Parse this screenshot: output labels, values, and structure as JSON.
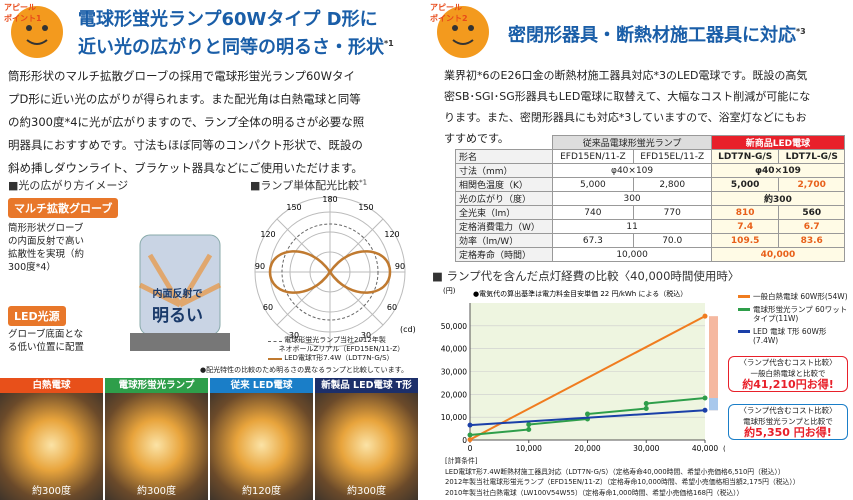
{
  "left": {
    "badge": [
      "アピール",
      "ポイント1"
    ],
    "title": [
      "電球形蛍光ランプ60Wタイプ D形に",
      "近い光の広がりと同等の明るさ・形状"
    ],
    "title_note": "*1",
    "paragraph": [
      "筒形形状のマルチ拡散グローブの採用で電球形蛍光ランプ60Wタイ",
      "プD形に近い光の広がりが得られます。また配光角は白熱電球と同等",
      "の約300度*4に光が広がりますので、ランプ全体の明るさが必要な照",
      "明器具におすすめです。寸法もほぼ同等のコンパクト形状で、既設の",
      "斜め挿しダウンライト、ブラケット器具などにご使用いただけます。"
    ],
    "section1": "■光の広がり方イメージ",
    "section2": "■ランプ単体配光比較",
    "section2_note": "*1",
    "illustration": {
      "label1": "マルチ拡散グローブ",
      "text1": [
        "筒形形状グローブ",
        "の内面反射で高い",
        "拡散性を実現（約",
        "300度*4）"
      ],
      "label2": "LED光源",
      "text2": [
        "グローブ底面とな",
        "る低い位置に配置"
      ],
      "lamp_text": [
        "内面反射で",
        "明るい"
      ]
    },
    "polar": {
      "angles": [
        180,
        150,
        120,
        90,
        60,
        30
      ],
      "unit": "(cd)",
      "legend": [
        "電球形蛍光ランプ当社2012年製",
        "ネオボールZリアル（EFD15EN/11-Z）",
        "LED電球T形7.4W（LDT7N-G/S）"
      ]
    },
    "note": "●配光特性の比較のため明るさの異なるランプと比較しています。",
    "panels": [
      {
        "name": "白熱電球",
        "angle": "約300度"
      },
      {
        "name": "電球形蛍光ランプ",
        "angle": "約300度"
      },
      {
        "name": "従来 LED電球",
        "angle": "約120度"
      },
      {
        "name": "新製品 LED電球 T形",
        "angle": "約300度"
      }
    ]
  },
  "right": {
    "badge": [
      "アピール",
      "ポイント2"
    ],
    "title": "密閉形器具・断熱材施工器具に対応",
    "title_note": "*3",
    "paragraph": [
      "業界初*6のE26口金の断熱材施工器具対応*3のLED電球です。既設の高気",
      "密SB･SGI･SG形器具もLED電球に取替えて、大幅なコスト削減が可能にな",
      "ります。また、密閉形器具にも対応*3していますので、浴室灯などにもお",
      "すすめです。"
    ],
    "table": {
      "group_old": "従来品電球形蛍光ランプ",
      "group_new": "新商品LED電球",
      "rows": [
        [
          "形名",
          "EFD15EN/11-Z",
          "EFD15EL/11-Z",
          "LDT7N-G/S",
          "LDT7L-G/S"
        ],
        [
          "寸法（mm）",
          "φ40×109",
          "φ40×109"
        ],
        [
          "相関色温度（K）",
          "5,000",
          "2,800",
          "5,000",
          "2,700"
        ],
        [
          "光の広がり（度）",
          "300",
          "約300"
        ],
        [
          "全光束（lm）",
          "740",
          "770",
          "810",
          "560"
        ],
        [
          "定格消費電力（W）",
          "11",
          "7.4",
          "6.7"
        ],
        [
          "効率（lm/W）",
          "67.3",
          "70.0",
          "109.5",
          "83.6"
        ],
        [
          "定格寿命（時間）",
          "10,000",
          "40,000"
        ]
      ]
    },
    "chart_title": "■ ランプ代を含んだ点灯経費の比較〈40,000時間使用時〉",
    "callouts": [
      {
        "head": "〈ランプ代含むコスト比較〉",
        "line": "一般白熱電球と比較で",
        "amount": "約41,210円お得!"
      },
      {
        "head": "〈ランプ代含むコスト比較〉",
        "line": "電球形蛍光ランプと比較で",
        "amount": "約5,350 円お得!"
      }
    ],
    "conditions": [
      "[計算条件]",
      "LED電球T形7.4W断熱材施工器具対応（LDT7N-G/S）（定格寿命40,000時間、希望小売価格6,510円（税込））",
      "2012年製当社電球形蛍光ランプ（EFD15EN/11-Z）（定格寿命10,000時間、希望小売価格相当額2,175円（税込））",
      "2010年製当社白熱電球（LW100V54W55）（定格寿命1,000時間、希望小売価格168円（税込））"
    ]
  },
  "chart_data": {
    "type": "line",
    "ylabel": "(円)",
    "xlabel": "(時間)",
    "note": "●電気代の算出基準は電力料金目安単価 22 円/kWh による（税込）",
    "xlim": [
      0,
      40000
    ],
    "xticks": [
      0,
      {
        "value": 10000,
        "label": "10,000"
      },
      {
        "value": 20000,
        "label": "20,000"
      },
      {
        "value": 30000,
        "label": "30,000"
      },
      {
        "value": 40000,
        "label": "40,000"
      }
    ],
    "ylim": [
      0,
      60000
    ],
    "yticks": [
      0,
      {
        "value": 10000,
        "label": "10,000"
      },
      {
        "value": 20000,
        "label": "20,000"
      },
      {
        "value": 30000,
        "label": "30,000"
      },
      {
        "value": 40000,
        "label": "40,000"
      },
      {
        "value": 50000,
        "label": "50,000"
      }
    ],
    "grid": true,
    "series": [
      {
        "name": "一般白熱電球 60W形(54W)",
        "color": "#f07c1f",
        "x": [
          0,
          40000
        ],
        "values": [
          168,
          54232
        ]
      },
      {
        "name": "電球形蛍光ランプ 60ワットタイプ(11W)",
        "color": "#2e9e4a",
        "x": [
          0,
          10000,
          10000,
          20000,
          20000,
          30000,
          30000,
          40000
        ],
        "values": [
          2175,
          4595,
          6770,
          9190,
          11365,
          13785,
          15960,
          18380
        ]
      },
      {
        "name": "LED 電球 T形 60W形(7.4W)",
        "color": "#1a3fa8",
        "x": [
          0,
          40000
        ],
        "values": [
          6510,
          13022
        ]
      }
    ]
  }
}
